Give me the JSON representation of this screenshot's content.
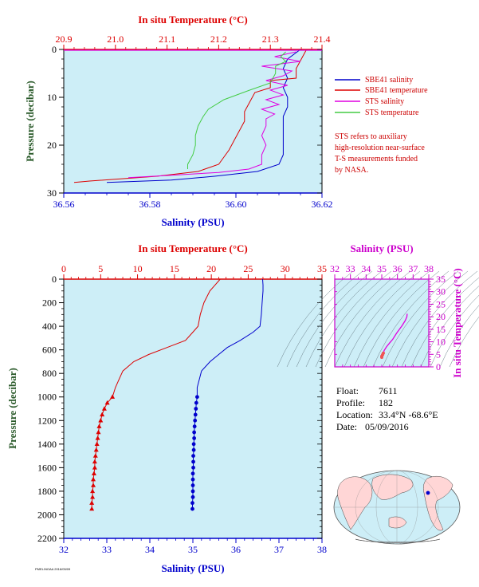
{
  "colors": {
    "panel_bg": "#cdeef7",
    "salinity": "#0000cc",
    "temperature": "#dd0000",
    "sts_salinity": "#e000e0",
    "sts_temperature": "#44cc44",
    "ts_axis": "#cc00cc",
    "pressure_label": "#2a5a2a"
  },
  "top_chart": {
    "top_axis_label": "In situ Temperature (°C)",
    "bottom_axis_label": "Salinity (PSU)",
    "left_axis_label": "Pressure (decibar)",
    "temp_ticks": [
      "20.9",
      "21.0",
      "21.1",
      "21.2",
      "21.3",
      "21.4"
    ],
    "sal_ticks": [
      "36.56",
      "36.58",
      "36.60",
      "36.62"
    ],
    "pres_ticks": [
      "0",
      "10",
      "20",
      "30"
    ],
    "legend": [
      {
        "label": "SBE41 salinity",
        "color": "#0000cc"
      },
      {
        "label": "SBE41 temperature",
        "color": "#dd0000"
      },
      {
        "label": "STS salinity",
        "color": "#e000e0"
      },
      {
        "label": "STS temperature",
        "color": "#44cc44"
      }
    ],
    "note_lines": [
      "STS refers to auxiliary",
      "high-resolution near-surface",
      "T-S measurements funded",
      "by NASA."
    ]
  },
  "bottom_chart": {
    "top_axis_label": "In situ Temperature (°C)",
    "bottom_axis_label": "Salinity (PSU)",
    "left_axis_label": "Pressure (decibar)",
    "temp_ticks": [
      "0",
      "5",
      "10",
      "15",
      "20",
      "25",
      "30",
      "35"
    ],
    "sal_ticks": [
      "32",
      "33",
      "34",
      "35",
      "36",
      "37",
      "38"
    ],
    "pres_ticks": [
      "0",
      "200",
      "400",
      "600",
      "800",
      "1000",
      "1200",
      "1400",
      "1600",
      "1800",
      "2000",
      "2200"
    ]
  },
  "ts_chart": {
    "top_axis_label": "Salinity (PSU)",
    "right_axis_label": "In situ Temperature (°C)",
    "sal_ticks": [
      "32",
      "33",
      "34",
      "35",
      "36",
      "37",
      "38"
    ],
    "temp_ticks": [
      "0",
      "5",
      "10",
      "15",
      "20",
      "25",
      "30",
      "35"
    ]
  },
  "float_info": {
    "float_label": "Float:",
    "float_value": "7611",
    "profile_label": "Profile:",
    "profile_value": "182",
    "location_label": "Location:",
    "location_value": "33.4°N  -68.6°E",
    "date_label": "Date:",
    "date_value": "05/09/2016"
  },
  "footer_text": "PMEL/NOAA 2016/05/09",
  "chart_data": [
    {
      "type": "line",
      "title": "",
      "xlabel": "Salinity (PSU)",
      "x2label": "In situ Temperature (°C)",
      "ylabel": "Pressure (decibar)",
      "xlim": [
        36.56,
        36.62
      ],
      "x2lim": [
        20.9,
        21.4
      ],
      "ylim": [
        30,
        0
      ],
      "series": [
        {
          "name": "SBE41 salinity",
          "axis": "salinity",
          "points": [
            [
              36.615,
              0
            ],
            [
              36.612,
              2
            ],
            [
              36.611,
              4
            ],
            [
              36.612,
              6
            ],
            [
              36.611,
              8
            ],
            [
              36.612,
              10
            ],
            [
              36.612,
              12
            ],
            [
              36.611,
              14
            ],
            [
              36.611,
              16
            ],
            [
              36.611,
              18
            ],
            [
              36.611,
              20
            ],
            [
              36.611,
              22
            ],
            [
              36.61,
              24
            ],
            [
              36.605,
              25.5
            ],
            [
              36.595,
              26.5
            ],
            [
              36.585,
              27.3
            ],
            [
              36.57,
              27.8
            ]
          ]
        },
        {
          "name": "SBE41 temperature",
          "axis": "temperature",
          "points": [
            [
              21.37,
              0
            ],
            [
              21.36,
              2
            ],
            [
              21.35,
              4
            ],
            [
              21.35,
              6
            ],
            [
              21.3,
              6.5
            ],
            [
              21.3,
              8
            ],
            [
              21.27,
              9
            ],
            [
              21.26,
              11
            ],
            [
              21.25,
              13
            ],
            [
              21.25,
              15
            ],
            [
              21.24,
              17
            ],
            [
              21.23,
              19
            ],
            [
              21.22,
              21
            ],
            [
              21.21,
              22.5
            ],
            [
              21.2,
              24
            ],
            [
              21.16,
              25.5
            ],
            [
              21.08,
              26.5
            ],
            [
              20.95,
              27.5
            ],
            [
              20.92,
              27.8
            ]
          ]
        },
        {
          "name": "STS salinity",
          "axis": "salinity",
          "points": [
            [
              36.614,
              0.5
            ],
            [
              36.609,
              1.5
            ],
            [
              36.615,
              2.5
            ],
            [
              36.606,
              3.5
            ],
            [
              36.613,
              4.5
            ],
            [
              36.611,
              5.5
            ],
            [
              36.607,
              6.5
            ],
            [
              36.612,
              7.5
            ],
            [
              36.608,
              8.5
            ],
            [
              36.611,
              9.5
            ],
            [
              36.607,
              10.5
            ],
            [
              36.61,
              11.5
            ],
            [
              36.606,
              12.5
            ],
            [
              36.609,
              13.5
            ],
            [
              36.607,
              14.5
            ],
            [
              36.607,
              16
            ],
            [
              36.606,
              18
            ],
            [
              36.607,
              20
            ],
            [
              36.606,
              22
            ],
            [
              36.606,
              24
            ],
            [
              36.603,
              25
            ],
            [
              36.596,
              25.7
            ],
            [
              36.585,
              26.3
            ],
            [
              36.575,
              26.8
            ]
          ]
        },
        {
          "name": "STS temperature",
          "axis": "temperature",
          "points": [
            [
              21.33,
              0.5
            ],
            [
              21.32,
              1.5
            ],
            [
              21.33,
              2.5
            ],
            [
              21.31,
              3.5
            ],
            [
              21.31,
              5
            ],
            [
              21.3,
              7
            ],
            [
              21.26,
              8.5
            ],
            [
              21.21,
              10.5
            ],
            [
              21.18,
              12.5
            ],
            [
              21.17,
              14
            ],
            [
              21.16,
              16
            ],
            [
              21.155,
              18
            ],
            [
              21.155,
              20
            ],
            [
              21.15,
              22
            ],
            [
              21.14,
              24
            ],
            [
              21.14,
              25
            ]
          ]
        }
      ]
    },
    {
      "type": "line",
      "title": "",
      "xlabel": "Salinity (PSU)",
      "x2label": "In situ Temperature (°C)",
      "ylabel": "Pressure (decibar)",
      "xlim": [
        32,
        38
      ],
      "x2lim": [
        0,
        35
      ],
      "ylim": [
        2200,
        0
      ],
      "series": [
        {
          "name": "SBE41 salinity",
          "axis": "salinity",
          "marker": "circle",
          "points": [
            [
              36.62,
              0
            ],
            [
              36.63,
              50
            ],
            [
              36.63,
              100
            ],
            [
              36.61,
              200
            ],
            [
              36.59,
              300
            ],
            [
              36.56,
              400
            ],
            [
              36.4,
              450
            ],
            [
              36.1,
              520
            ],
            [
              35.8,
              580
            ],
            [
              35.6,
              640
            ],
            [
              35.4,
              700
            ],
            [
              35.2,
              780
            ],
            [
              35.15,
              850
            ],
            [
              35.1,
              920
            ],
            [
              35.1,
              1000
            ],
            [
              35.08,
              1050
            ],
            [
              35.07,
              1100
            ],
            [
              35.06,
              1150
            ],
            [
              35.05,
              1200
            ],
            [
              35.04,
              1250
            ],
            [
              35.03,
              1300
            ],
            [
              35.03,
              1350
            ],
            [
              35.02,
              1400
            ],
            [
              35.02,
              1450
            ],
            [
              35.01,
              1500
            ],
            [
              35.01,
              1550
            ],
            [
              35.01,
              1600
            ],
            [
              35.0,
              1650
            ],
            [
              35.0,
              1700
            ],
            [
              35.0,
              1750
            ],
            [
              35.0,
              1800
            ],
            [
              35.0,
              1850
            ],
            [
              34.99,
              1900
            ],
            [
              34.99,
              1950
            ]
          ]
        },
        {
          "name": "SBE41 temperature",
          "axis": "temperature",
          "marker": "triangle",
          "points": [
            [
              21.2,
              0
            ],
            [
              20.5,
              50
            ],
            [
              19.8,
              100
            ],
            [
              19.0,
              200
            ],
            [
              18.5,
              300
            ],
            [
              18.2,
              400
            ],
            [
              17.5,
              450
            ],
            [
              16.5,
              520
            ],
            [
              14.0,
              580
            ],
            [
              11.5,
              640
            ],
            [
              9.5,
              700
            ],
            [
              8.0,
              780
            ],
            [
              7.5,
              850
            ],
            [
              7.0,
              920
            ],
            [
              6.6,
              1000
            ],
            [
              5.9,
              1050
            ],
            [
              5.5,
              1100
            ],
            [
              5.2,
              1150
            ],
            [
              5.0,
              1200
            ],
            [
              4.8,
              1250
            ],
            [
              4.7,
              1300
            ],
            [
              4.6,
              1350
            ],
            [
              4.5,
              1400
            ],
            [
              4.4,
              1450
            ],
            [
              4.3,
              1500
            ],
            [
              4.2,
              1550
            ],
            [
              4.2,
              1600
            ],
            [
              4.1,
              1650
            ],
            [
              4.0,
              1700
            ],
            [
              4.0,
              1750
            ],
            [
              3.9,
              1800
            ],
            [
              3.9,
              1850
            ],
            [
              3.8,
              1900
            ],
            [
              3.8,
              1950
            ]
          ]
        }
      ]
    },
    {
      "type": "scatter",
      "title": "",
      "xlabel": "Salinity (PSU)",
      "ylabel": "In situ Temperature (°C)",
      "xlim": [
        32,
        38
      ],
      "ylim": [
        0,
        35
      ],
      "series": [
        {
          "points": [
            [
              36.62,
              21.2
            ],
            [
              36.6,
              20.0
            ],
            [
              36.5,
              18.5
            ],
            [
              36.3,
              16.5
            ],
            [
              35.95,
              13.5
            ],
            [
              35.7,
              11.0
            ],
            [
              35.5,
              9.5
            ],
            [
              35.3,
              8.0
            ],
            [
              35.15,
              6.5
            ],
            [
              35.1,
              5.5
            ],
            [
              35.05,
              4.8
            ],
            [
              35.0,
              4.2
            ],
            [
              35.0,
              3.8
            ]
          ]
        }
      ]
    }
  ]
}
